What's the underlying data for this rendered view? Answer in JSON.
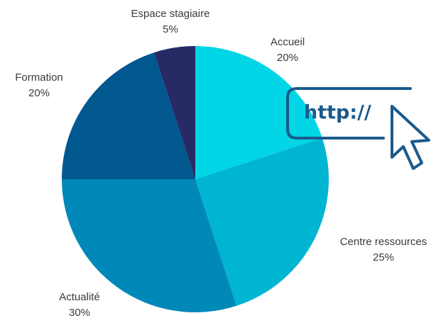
{
  "chart_data": {
    "type": "pie",
    "categories": [
      "Accueil",
      "Centre ressources",
      "Actualité",
      "Formation",
      "Espace stagiaire"
    ],
    "values": [
      20,
      25,
      30,
      20,
      5
    ],
    "value_labels": [
      "20%",
      "25%",
      "30%",
      "20%",
      "5%"
    ],
    "colors": [
      "#00d6e6",
      "#00b5d2",
      "#0088b9",
      "#00588f",
      "#262b66"
    ],
    "annotation": "http://"
  }
}
